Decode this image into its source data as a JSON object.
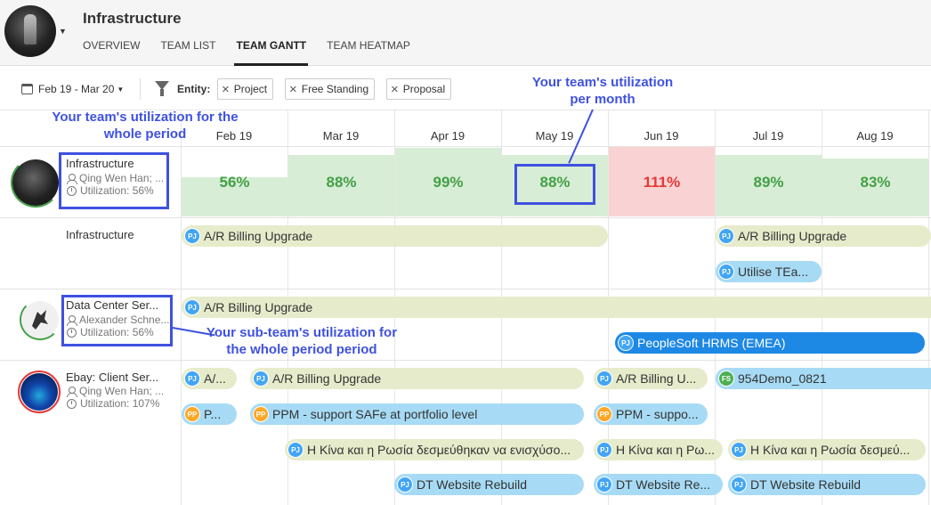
{
  "header": {
    "title": "Infrastructure",
    "tabs": [
      {
        "label": "OVERVIEW"
      },
      {
        "label": "TEAM LIST"
      },
      {
        "label": "TEAM GANTT",
        "active": true
      },
      {
        "label": "TEAM HEATMAP"
      }
    ]
  },
  "toolbar": {
    "date_range": "Feb 19 - Mar 20",
    "entity_label": "Entity:",
    "filters": [
      "Project",
      "Free Standing",
      "Proposal"
    ]
  },
  "months": [
    "Feb 19",
    "Mar 19",
    "Apr 19",
    "May 19",
    "Jun 19",
    "Jul 19",
    "Aug 19"
  ],
  "utilization": [
    {
      "pct": "56%",
      "level": 0.56,
      "status": "ok"
    },
    {
      "pct": "88%",
      "level": 0.88,
      "status": "ok"
    },
    {
      "pct": "99%",
      "level": 0.99,
      "status": "ok"
    },
    {
      "pct": "88%",
      "level": 0.88,
      "status": "ok"
    },
    {
      "pct": "111%",
      "level": 1.0,
      "status": "over"
    },
    {
      "pct": "89%",
      "level": 0.89,
      "status": "ok"
    },
    {
      "pct": "83%",
      "level": 0.83,
      "status": "ok"
    }
  ],
  "colors": {
    "ok_text": "#43a047",
    "over_text": "#e53935",
    "ok_fill": "#d8edd5",
    "over_fill": "#f9d3d4",
    "annotation": "#3f51e0"
  },
  "rows": {
    "infrastructure": {
      "name": "Infrastructure",
      "members": "Qing Wen Han; ...",
      "utilization": "Utilization: 56%",
      "group_label": "Infrastructure"
    },
    "datacenter": {
      "name": "Data Center Ser...",
      "members": "Alexander Schne...",
      "utilization": "Utilization: 56%"
    },
    "ebay": {
      "name": "Ebay: Client Ser...",
      "members": "Qing Wen Han; ...",
      "utilization": "Utilization: 107%"
    }
  },
  "bars": {
    "infra_1": {
      "badge": "PJ",
      "label": "A/R Billing Upgrade"
    },
    "infra_2": {
      "badge": "PJ",
      "label": "A/R Billing Upgrade"
    },
    "infra_3": {
      "badge": "PJ",
      "label": "Utilise TEa..."
    },
    "dc_1": {
      "badge": "PJ",
      "label": "A/R Billing Upgrade"
    },
    "dc_2": {
      "badge": "PJ",
      "label": "PeopleSoft HRMS (EMEA)"
    },
    "eb_1": {
      "badge": "PJ",
      "label": "A/..."
    },
    "eb_2": {
      "badge": "PJ",
      "label": "A/R Billing Upgrade"
    },
    "eb_3": {
      "badge": "PJ",
      "label": "A/R Billing U..."
    },
    "eb_4": {
      "badge": "FS",
      "label": "954Demo_0821"
    },
    "eb_5": {
      "badge": "PP",
      "label": "P..."
    },
    "eb_6": {
      "badge": "PP",
      "label": "PPM - support SAFe at portfolio level"
    },
    "eb_7": {
      "badge": "PP",
      "label": "PPM - suppo..."
    },
    "eb_8": {
      "badge": "PJ",
      "label": "Η Κίνα και η Ρωσία δεσμεύθηκαν να ενισχύσο..."
    },
    "eb_9": {
      "badge": "PJ",
      "label": "Η Κίνα και η Ρω..."
    },
    "eb_10": {
      "badge": "PJ",
      "label": "Η Κίνα και η Ρωσία δεσμεύ..."
    },
    "eb_11": {
      "badge": "PJ",
      "label": "DT Website Rebuild"
    },
    "eb_12": {
      "badge": "PJ",
      "label": "DT Website Re..."
    },
    "eb_13": {
      "badge": "PJ",
      "label": "DT Website Rebuild"
    }
  },
  "annotations": {
    "whole_period": "Your team's utilization for the whole period",
    "per_month": "Your team's utilization per month",
    "sub_team": "Your sub-team's utilization for the whole period period"
  }
}
